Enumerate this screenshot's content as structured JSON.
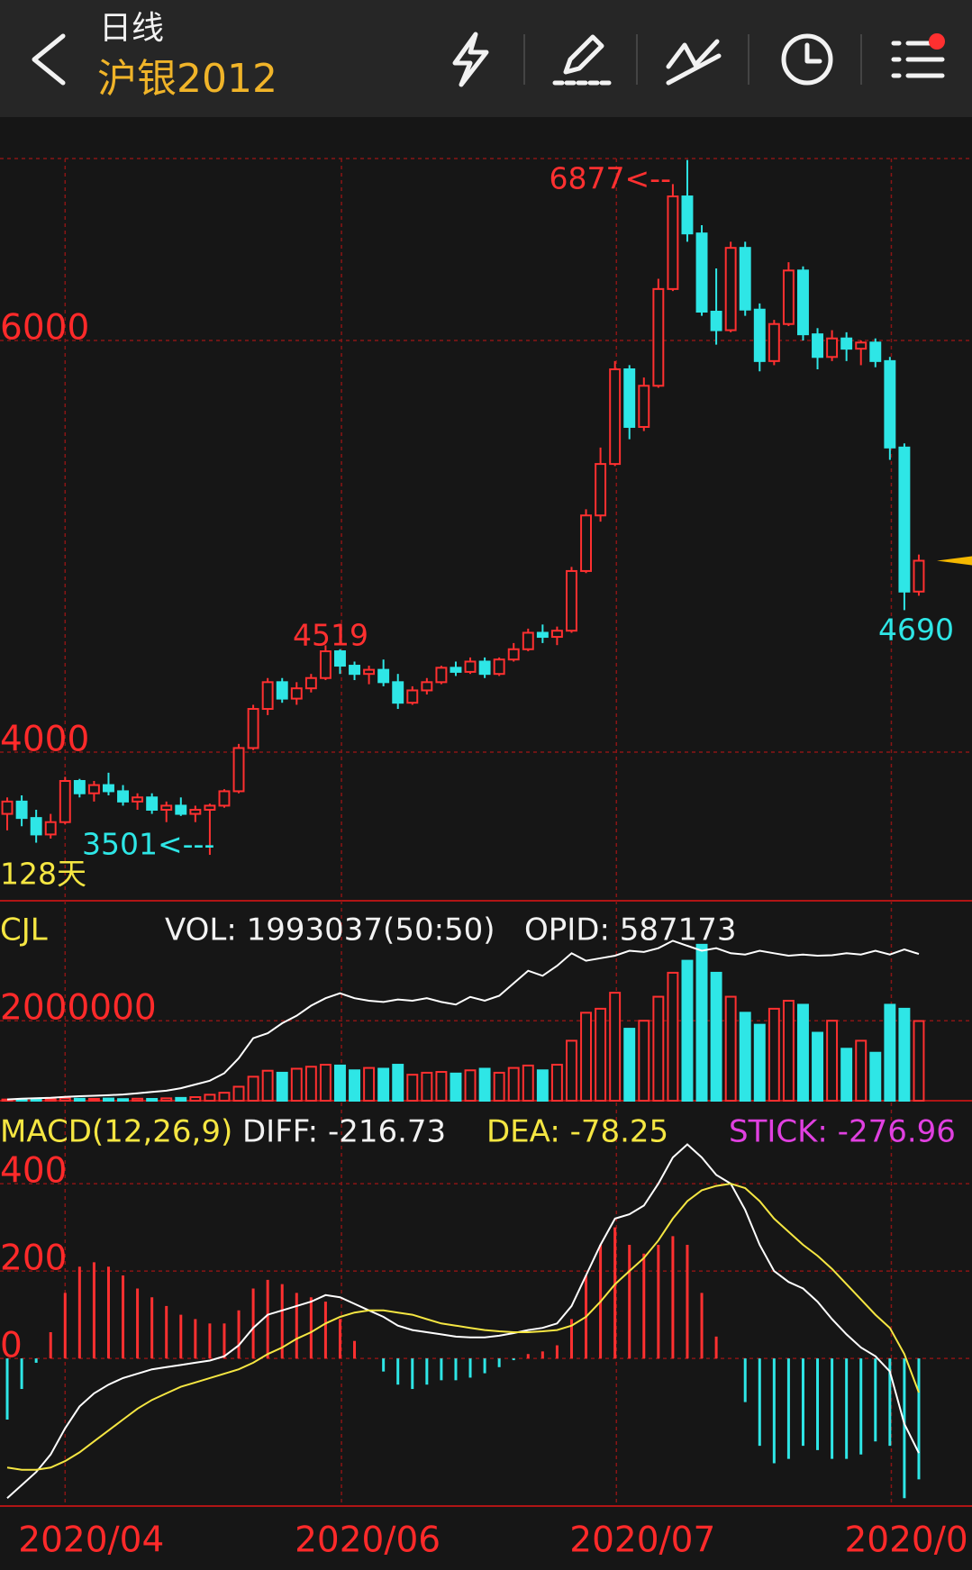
{
  "header": {
    "period": "日线",
    "title": "沪银2012"
  },
  "chart_data": [
    {
      "type": "candlestick",
      "range_label": "128天",
      "annotations": [
        "6877<--",
        "4519",
        "3501<---",
        "4690"
      ],
      "up_color": "#ff3030",
      "down_color": "#2ee6e6",
      "last_price_color": "#f5b800",
      "xlim": [
        0,
        64
      ],
      "xticks": [
        {
          "value": 4.5,
          "label": "2020/04"
        },
        {
          "value": 23.6,
          "label": "2020/06"
        },
        {
          "value": 42.6,
          "label": "2020/07"
        },
        {
          "value": 61.6,
          "label": "2020/0"
        }
      ],
      "ylim": [
        3278,
        6884
      ],
      "yticks": [
        4000,
        6000
      ],
      "grid": true,
      "open": [
        3700,
        3760,
        3680,
        3600,
        3660,
        3860,
        3800,
        3840,
        3810,
        3760,
        3780,
        3720,
        3740,
        3700,
        3720,
        3740,
        3810,
        4020,
        4210,
        4340,
        4260,
        4310,
        4360,
        4490,
        4420,
        4380,
        4400,
        4340,
        4240,
        4300,
        4340,
        4410,
        4390,
        4440,
        4380,
        4450,
        4500,
        4580,
        4560,
        4590,
        4880,
        5150,
        5400,
        5860,
        5580,
        5780,
        6250,
        6700,
        6520,
        6140,
        6050,
        6450,
        6150,
        5900,
        6080,
        6340,
        6030,
        5920,
        6010,
        5960,
        5990,
        5900,
        5480,
        4780
      ],
      "high": [
        3780,
        3790,
        3720,
        3700,
        3880,
        3870,
        3860,
        3900,
        3840,
        3800,
        3800,
        3760,
        3780,
        3740,
        3750,
        3820,
        4040,
        4230,
        4360,
        4360,
        4340,
        4380,
        4519,
        4500,
        4440,
        4420,
        4450,
        4380,
        4320,
        4360,
        4420,
        4440,
        4460,
        4460,
        4460,
        4530,
        4600,
        4620,
        4610,
        4900,
        5180,
        5480,
        5900,
        5880,
        5820,
        6300,
        6760,
        6877,
        6560,
        6350,
        6480,
        6480,
        6180,
        6100,
        6380,
        6360,
        6060,
        6050,
        6040,
        6000,
        6010,
        5920,
        5500,
        4960
      ],
      "low": [
        3620,
        3640,
        3560,
        3580,
        3650,
        3780,
        3760,
        3790,
        3740,
        3720,
        3700,
        3660,
        3690,
        3660,
        3501,
        3730,
        3800,
        4010,
        4180,
        4240,
        4230,
        4290,
        4350,
        4380,
        4350,
        4330,
        4320,
        4210,
        4230,
        4280,
        4330,
        4370,
        4380,
        4360,
        4370,
        4440,
        4490,
        4530,
        4520,
        4580,
        4870,
        5120,
        5390,
        5520,
        5560,
        5770,
        6240,
        6480,
        6120,
        5980,
        6040,
        6120,
        5850,
        5880,
        6070,
        6000,
        5860,
        5900,
        5900,
        5880,
        5870,
        5420,
        4690,
        4760
      ],
      "close": [
        3760,
        3680,
        3600,
        3660,
        3860,
        3800,
        3840,
        3810,
        3760,
        3780,
        3720,
        3740,
        3700,
        3720,
        3740,
        3810,
        4020,
        4210,
        4340,
        4260,
        4310,
        4360,
        4490,
        4420,
        4380,
        4400,
        4340,
        4240,
        4300,
        4340,
        4410,
        4390,
        4440,
        4380,
        4450,
        4500,
        4580,
        4560,
        4590,
        4880,
        5150,
        5400,
        5860,
        5580,
        5780,
        6250,
        6700,
        6520,
        6140,
        6050,
        6450,
        6150,
        5900,
        6080,
        6340,
        6030,
        5920,
        6010,
        5960,
        5990,
        5900,
        5480,
        4780,
        4930
      ]
    },
    {
      "type": "volume",
      "title": "CJL",
      "title_color": "#f5e642",
      "ylim": [
        0,
        5000000
      ],
      "yticks": [
        2000000
      ],
      "grid": true,
      "y2lim": [
        0,
        800000
      ],
      "series": [
        {
          "name": "VOL: 1993037(50:50)",
          "color": "#ffffff",
          "values": [
            30000,
            25000,
            40000,
            35000,
            60000,
            50000,
            45000,
            55000,
            40000,
            50000,
            45000,
            60000,
            70000,
            90000,
            150000,
            200000,
            350000,
            600000,
            750000,
            700000,
            800000,
            850000,
            900000,
            880000,
            760000,
            820000,
            800000,
            900000,
            650000,
            700000,
            720000,
            680000,
            760000,
            800000,
            700000,
            820000,
            880000,
            760000,
            900000,
            1500000,
            2200000,
            2300000,
            2700000,
            1800000,
            2000000,
            2600000,
            3200000,
            3500000,
            3900000,
            3200000,
            2600000,
            2200000,
            1900000,
            2300000,
            2500000,
            2400000,
            1700000,
            2000000,
            1300000,
            1500000,
            1200000,
            2400000,
            2300000,
            1993037
          ]
        },
        {
          "name": "OPID: 587173",
          "color": "#ffffff",
          "axis": "y2",
          "values": [
            5000,
            8000,
            10000,
            12000,
            15000,
            18000,
            20000,
            22000,
            25000,
            30000,
            35000,
            40000,
            50000,
            65000,
            80000,
            110000,
            170000,
            250000,
            270000,
            310000,
            340000,
            380000,
            410000,
            430000,
            410000,
            400000,
            395000,
            405000,
            400000,
            410000,
            395000,
            385000,
            415000,
            400000,
            420000,
            470000,
            520000,
            500000,
            540000,
            590000,
            560000,
            570000,
            580000,
            600000,
            595000,
            610000,
            640000,
            620000,
            600000,
            610000,
            590000,
            585000,
            600000,
            590000,
            580000,
            585000,
            580000,
            582000,
            590000,
            585000,
            600000,
            585000,
            605000,
            587173
          ]
        }
      ]
    },
    {
      "type": "macd",
      "title": "MACD(12,26,9)",
      "title_color": "#f5e642",
      "ylim": [
        -338,
        590
      ],
      "yticks": [
        0,
        200,
        400
      ],
      "grid": true,
      "series": [
        {
          "name": "DIFF: -216.73",
          "color": "#ffffff",
          "values": [
            -320,
            -290,
            -260,
            -220,
            -160,
            -110,
            -80,
            -60,
            -45,
            -35,
            -25,
            -20,
            -15,
            -10,
            -5,
            5,
            30,
            70,
            100,
            110,
            120,
            130,
            145,
            140,
            125,
            110,
            95,
            75,
            65,
            60,
            55,
            50,
            48,
            48,
            52,
            58,
            65,
            70,
            80,
            120,
            190,
            260,
            320,
            330,
            350,
            400,
            460,
            490,
            460,
            420,
            400,
            340,
            260,
            200,
            175,
            160,
            130,
            90,
            55,
            25,
            5,
            -30,
            -150,
            -216.73
          ]
        },
        {
          "name": "DEA: -78.25",
          "color": "#f5e642",
          "values": [
            -250,
            -255,
            -255,
            -250,
            -235,
            -215,
            -190,
            -165,
            -140,
            -115,
            -95,
            -80,
            -65,
            -55,
            -45,
            -35,
            -25,
            -10,
            10,
            25,
            45,
            60,
            80,
            95,
            105,
            110,
            110,
            105,
            100,
            90,
            80,
            75,
            70,
            65,
            62,
            60,
            60,
            62,
            65,
            75,
            95,
            130,
            170,
            200,
            230,
            270,
            320,
            360,
            385,
            395,
            400,
            390,
            360,
            320,
            290,
            260,
            235,
            205,
            170,
            135,
            100,
            70,
            10,
            -78.25
          ]
        },
        {
          "name": "STICK: -276.96",
          "color": "#e040e0",
          "values": [
            -140,
            -70,
            -10,
            60,
            150,
            210,
            220,
            210,
            190,
            160,
            140,
            120,
            100,
            90,
            80,
            80,
            110,
            160,
            180,
            170,
            150,
            140,
            130,
            90,
            40,
            0,
            -30,
            -60,
            -70,
            -60,
            -50,
            -50,
            -44,
            -34,
            -20,
            -4,
            10,
            16,
            30,
            90,
            190,
            260,
            300,
            260,
            240,
            260,
            280,
            260,
            150,
            50,
            0,
            -100,
            -200,
            -240,
            -230,
            -200,
            -210,
            -230,
            -230,
            -220,
            -190,
            -200,
            -320,
            -276.96
          ]
        }
      ]
    }
  ]
}
